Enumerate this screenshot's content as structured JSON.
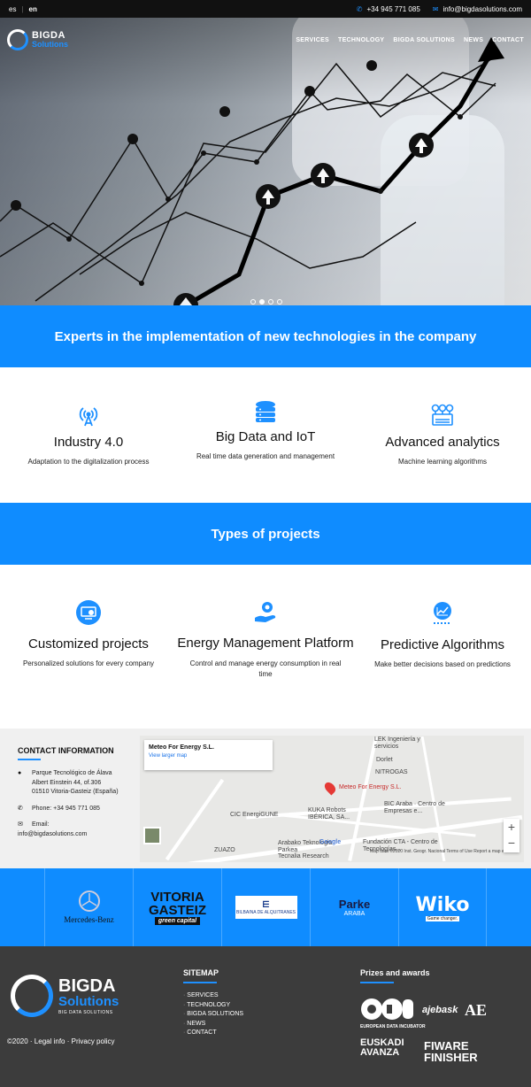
{
  "topbar": {
    "lang_es": "es",
    "lang_en": "en",
    "phone": "+34 945 771 085",
    "email": "info@bigdasolutions.com"
  },
  "brand": {
    "name": "BIGDA",
    "sub": "Solutions",
    "tagline": "BIG DATA SOLUTIONS",
    "accent": "#0f8cff"
  },
  "nav": {
    "items": [
      "SERVICES",
      "TECHNOLOGY",
      "BIGDA SOLUTIONS",
      "NEWS",
      "CONTACT"
    ]
  },
  "hero": {
    "slides": 4,
    "active_slide": 2
  },
  "intro": {
    "headline": "Experts in the implementation of new technologies in the company"
  },
  "features": [
    {
      "icon": "wifi-tower-icon",
      "title": "Industry 4.0",
      "text": "Adaptation to the digitalization process"
    },
    {
      "icon": "database-icon",
      "title": "Big Data and IoT",
      "text": "Real time data generation and management"
    },
    {
      "icon": "analytics-network-icon",
      "title": "Advanced analytics",
      "text": "Machine learning algorithms"
    }
  ],
  "projects": {
    "headline": "Types of projects",
    "items": [
      {
        "icon": "custom-gear-screen-icon",
        "title": "Customized projects",
        "text": "Personalized solutions for every company"
      },
      {
        "icon": "energy-hand-gear-icon",
        "title": "Energy Management Platform",
        "text": "Control and manage energy consumption in real time"
      },
      {
        "icon": "predictive-chart-icon",
        "title": "Predictive Algorithms",
        "text": "Make better decisions based on predictions"
      }
    ]
  },
  "contact": {
    "heading": "CONTACT INFORMATION",
    "address": [
      "Parque Tecnológico de Álava",
      "Albert Einstein 44, of.306",
      "01510 Vitoria-Gasteiz (España)"
    ],
    "phone": "Phone: +34 945 771 085",
    "email_label": "Email:",
    "email": "info@bigdasolutions.com"
  },
  "map": {
    "place_name": "Meteo For Energy S.L.",
    "view_larger": "View larger map",
    "pin_label": "Meteo For Energy S.L.",
    "labels": [
      "LEK Ingeniería y servicios",
      "Dorlet",
      "NITROGAS",
      "BIC Araba · Centro de Empresas e...",
      "CIC EnergiGUNE",
      "KUKA Robots IBÉRICA, SA...",
      "Arabako Teknologia Parkea",
      "Fundación CTA - Centro de Tecnologías...",
      "ZUAZO",
      "Tecnalia Research"
    ],
    "google": "Google",
    "attribution": "Map data ©2020 Inst. Geogr. Nacional   Terms of Use   Report a map error",
    "zoom_in": "+",
    "zoom_out": "−"
  },
  "partners": [
    {
      "name": "Mercedes-Benz"
    },
    {
      "name": "VITORIA GASTEIZ",
      "sub": "green capital"
    },
    {
      "name": "BILBAINA DE ALQUITRANES"
    },
    {
      "name": "Parke",
      "sub": "ARABA"
    },
    {
      "name": "Wiko",
      "sub": "Game changer."
    }
  ],
  "footer": {
    "copyright": "©2020 · Legal info · Privacy policy",
    "sitemap_heading": "SITEMAP",
    "sitemap": [
      "SERVICES",
      "TECHNOLOGY",
      "BIGDA SOLUTIONS",
      "NEWS",
      "CONTACT"
    ],
    "awards_heading": "Prizes and awards",
    "awards": [
      "EUROPEAN DATA INCUBATOR",
      "ajebask",
      "AE",
      "EUSKADI AVANZA",
      "FIWARE FINISHER"
    ]
  }
}
